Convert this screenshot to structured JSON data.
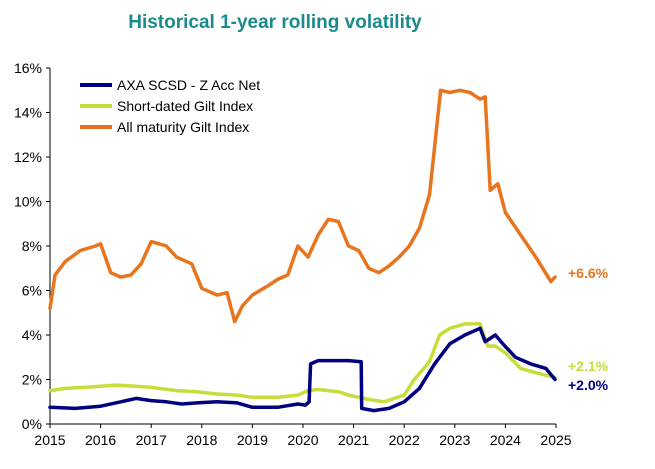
{
  "chart_data": {
    "type": "line",
    "title": "Historical 1-year rolling volatility",
    "xlabel": "",
    "ylabel": "",
    "xlim": [
      2015,
      2025
    ],
    "ylim": [
      0,
      16
    ],
    "x_ticks": [
      "2015",
      "2016",
      "2017",
      "2018",
      "2019",
      "2020",
      "2021",
      "2022",
      "2023",
      "2024",
      "2025"
    ],
    "y_ticks": [
      "0%",
      "2%",
      "4%",
      "6%",
      "8%",
      "10%",
      "12%",
      "14%",
      "16%"
    ],
    "grid": false,
    "legend_position": "top-left",
    "series": [
      {
        "name": "AXA SCSD - Z Acc Net",
        "color": "#000080",
        "x": [
          2015.0,
          2015.5,
          2016.0,
          2016.4,
          2016.7,
          2017.0,
          2017.3,
          2017.6,
          2017.9,
          2018.3,
          2018.7,
          2019.0,
          2019.5,
          2019.9,
          2020.05,
          2020.12,
          2020.15,
          2020.3,
          2020.6,
          2020.9,
          2021.15,
          2021.16,
          2021.4,
          2021.7,
          2022.0,
          2022.3,
          2022.6,
          2022.9,
          2023.2,
          2023.5,
          2023.6,
          2023.8,
          2023.95,
          2024.2,
          2024.5,
          2024.8,
          2024.98
        ],
        "values": [
          0.75,
          0.7,
          0.8,
          1.0,
          1.15,
          1.05,
          1.0,
          0.9,
          0.95,
          1.0,
          0.95,
          0.75,
          0.75,
          0.9,
          0.85,
          1.0,
          2.7,
          2.85,
          2.85,
          2.85,
          2.8,
          0.7,
          0.6,
          0.7,
          1.0,
          1.6,
          2.7,
          3.6,
          4.0,
          4.3,
          3.7,
          4.0,
          3.6,
          3.0,
          2.7,
          2.5,
          2.0
        ]
      },
      {
        "name": "Short-dated Gilt Index",
        "color": "#C8DC3C",
        "x": [
          2015.0,
          2015.3,
          2015.7,
          2016.0,
          2016.3,
          2016.7,
          2017.0,
          2017.5,
          2017.9,
          2018.3,
          2018.7,
          2019.0,
          2019.5,
          2019.9,
          2020.1,
          2020.3,
          2020.7,
          2020.9,
          2021.3,
          2021.6,
          2022.0,
          2022.2,
          2022.5,
          2022.7,
          2022.9,
          2023.2,
          2023.5,
          2023.65,
          2023.8,
          2024.0,
          2024.3,
          2024.6,
          2024.98
        ],
        "values": [
          1.5,
          1.6,
          1.65,
          1.7,
          1.75,
          1.7,
          1.65,
          1.5,
          1.45,
          1.35,
          1.3,
          1.2,
          1.2,
          1.3,
          1.5,
          1.55,
          1.45,
          1.3,
          1.1,
          1.0,
          1.3,
          2.0,
          2.8,
          4.0,
          4.3,
          4.5,
          4.5,
          3.5,
          3.5,
          3.2,
          2.5,
          2.3,
          2.1
        ]
      },
      {
        "name": "All maturity Gilt Index",
        "color": "#E8741E",
        "x": [
          2015.0,
          2015.1,
          2015.3,
          2015.6,
          2015.9,
          2016.0,
          2016.2,
          2016.4,
          2016.6,
          2016.8,
          2017.0,
          2017.3,
          2017.5,
          2017.8,
          2018.0,
          2018.3,
          2018.5,
          2018.65,
          2018.8,
          2019.0,
          2019.3,
          2019.5,
          2019.7,
          2019.9,
          2020.1,
          2020.3,
          2020.5,
          2020.7,
          2020.9,
          2021.1,
          2021.3,
          2021.5,
          2021.7,
          2021.9,
          2022.1,
          2022.3,
          2022.5,
          2022.72,
          2022.9,
          2023.1,
          2023.3,
          2023.5,
          2023.6,
          2023.7,
          2023.85,
          2024.0,
          2024.3,
          2024.6,
          2024.9,
          2024.98
        ],
        "values": [
          5.2,
          6.7,
          7.3,
          7.8,
          8.0,
          8.1,
          6.8,
          6.6,
          6.7,
          7.2,
          8.2,
          8.0,
          7.5,
          7.2,
          6.1,
          5.8,
          5.9,
          4.6,
          5.3,
          5.8,
          6.2,
          6.5,
          6.7,
          8.0,
          7.5,
          8.5,
          9.2,
          9.1,
          8.0,
          7.8,
          7.0,
          6.8,
          7.1,
          7.5,
          8.0,
          8.8,
          10.3,
          15.0,
          14.9,
          15.0,
          14.9,
          14.6,
          14.7,
          10.5,
          10.8,
          9.5,
          8.5,
          7.5,
          6.4,
          6.6
        ]
      }
    ],
    "end_labels": [
      "+6.6%",
      "+2.1%",
      "+2.0%"
    ],
    "end_label_colors": [
      "#E8741E",
      "#C8DC3C",
      "#000080"
    ]
  }
}
